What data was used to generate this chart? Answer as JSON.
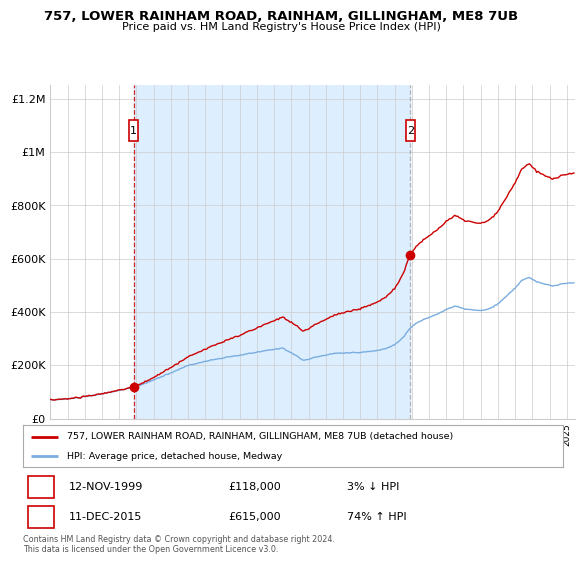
{
  "title": "757, LOWER RAINHAM ROAD, RAINHAM, GILLINGHAM, ME8 7UB",
  "subtitle": "Price paid vs. HM Land Registry's House Price Index (HPI)",
  "sale1_price": 118000,
  "sale2_price": 615000,
  "red_line_color": "#cc0000",
  "blue_line_color": "#7aade0",
  "shaded_color": "#ddeeff",
  "background_color": "#ffffff",
  "grid_color": "#cccccc",
  "ylabel_ticks": [
    "£0",
    "£200K",
    "£400K",
    "£600K",
    "£800K",
    "£1M",
    "£1.2M"
  ],
  "ytick_values": [
    0,
    200000,
    400000,
    600000,
    800000,
    1000000,
    1200000
  ],
  "legend_line1": "757, LOWER RAINHAM ROAD, RAINHAM, GILLINGHAM, ME8 7UB (detached house)",
  "legend_line2": "HPI: Average price, detached house, Medway",
  "footer": "Contains HM Land Registry data © Crown copyright and database right 2024.\nThis data is licensed under the Open Government Licence v3.0.",
  "blue_knots_x": [
    1995.0,
    1996.0,
    1997.0,
    1998.0,
    1999.0,
    1999.9,
    2001.0,
    2002.0,
    2003.0,
    2004.5,
    2006.0,
    2007.5,
    2008.5,
    2009.2,
    2009.7,
    2010.5,
    2011.5,
    2012.5,
    2013.0,
    2014.0,
    2014.5,
    2015.0,
    2015.5,
    2015.9,
    2016.3,
    2016.8,
    2017.5,
    2018.0,
    2018.5,
    2019.0,
    2019.5,
    2020.0,
    2020.5,
    2021.0,
    2021.5,
    2022.0,
    2022.4,
    2022.8,
    2023.2,
    2023.7,
    2024.2,
    2024.7,
    2025.3
  ],
  "blue_knots_y": [
    70000,
    74000,
    82000,
    93000,
    106000,
    118000,
    145000,
    172000,
    200000,
    222000,
    238000,
    255000,
    265000,
    240000,
    218000,
    232000,
    245000,
    248000,
    248000,
    256000,
    263000,
    278000,
    305000,
    340000,
    360000,
    375000,
    393000,
    410000,
    422000,
    413000,
    408000,
    405000,
    412000,
    430000,
    460000,
    490000,
    520000,
    530000,
    515000,
    505000,
    498000,
    505000,
    510000
  ],
  "sale1_time": 1999.833,
  "sale2_time": 2015.917,
  "sale1_ratio": 1.0,
  "sale2_ratio": 1.74,
  "noise_seed_blue": 10,
  "noise_seed_red": 20,
  "noise_scale": 800
}
